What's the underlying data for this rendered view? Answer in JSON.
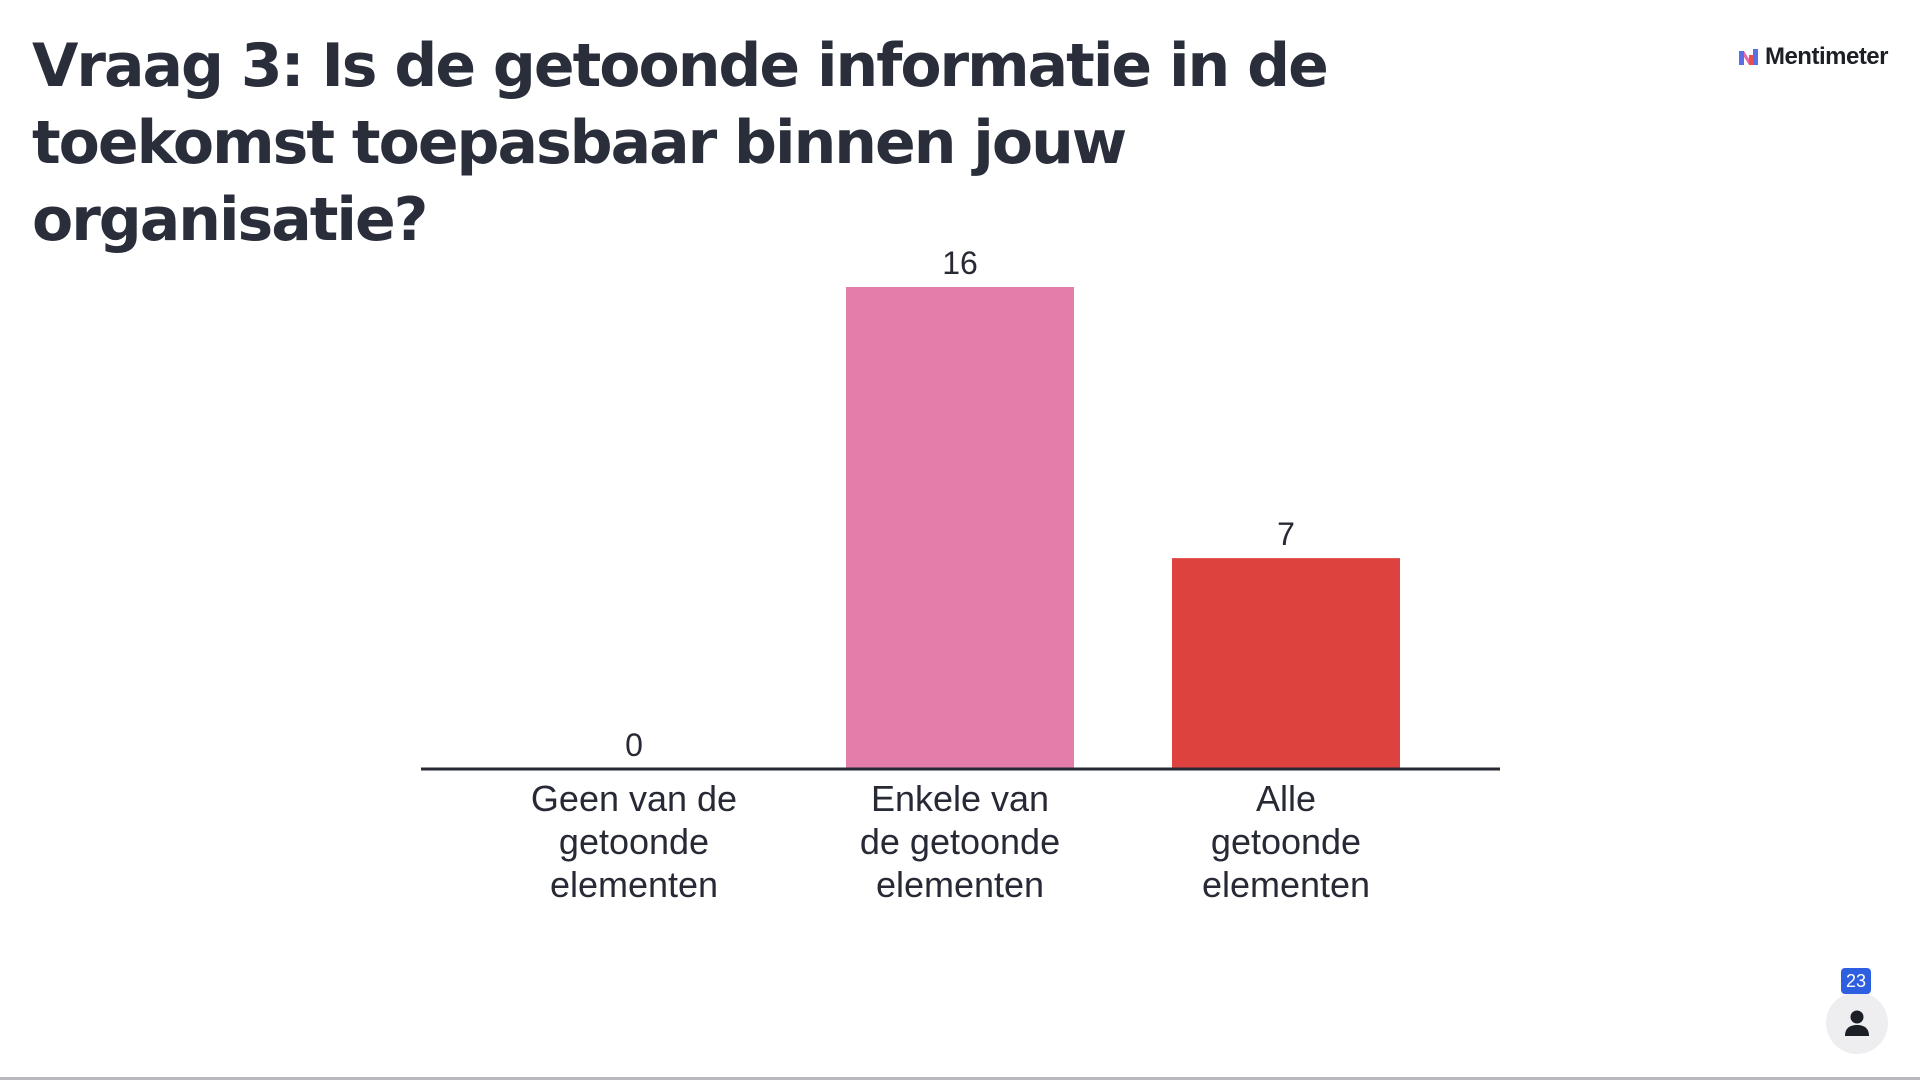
{
  "slide": {
    "title": "Vraag 3: Is de getoonde informatie in de toekomst toepasbaar binnen jouw organisatie?"
  },
  "branding": {
    "logo_text": "Mentimeter",
    "logo_icon": "mentimeter-logo-icon"
  },
  "participants": {
    "count": "23",
    "icon": "person-icon"
  },
  "colors": {
    "bar_geen": "#e47ea9",
    "bar_enkele": "#e47ea9",
    "bar_alle": "#de423e",
    "baseline": "#272a35",
    "badge": "#2e5fe0"
  },
  "chart_data": {
    "type": "bar",
    "categories": [
      [
        "Geen van de",
        "getoonde",
        "elementen"
      ],
      [
        "Enkele van",
        "de getoonde",
        "elementen"
      ],
      [
        "Alle",
        "getoonde",
        "elementen"
      ]
    ],
    "values": [
      0,
      16,
      7
    ],
    "value_labels": [
      "0",
      "16",
      "7"
    ],
    "bar_colors": [
      "#e47ea9",
      "#e47ea9",
      "#de423e"
    ],
    "title": "",
    "xlabel": "",
    "ylabel": "",
    "ylim": [
      0,
      16
    ],
    "grid": false,
    "legend": "none"
  }
}
